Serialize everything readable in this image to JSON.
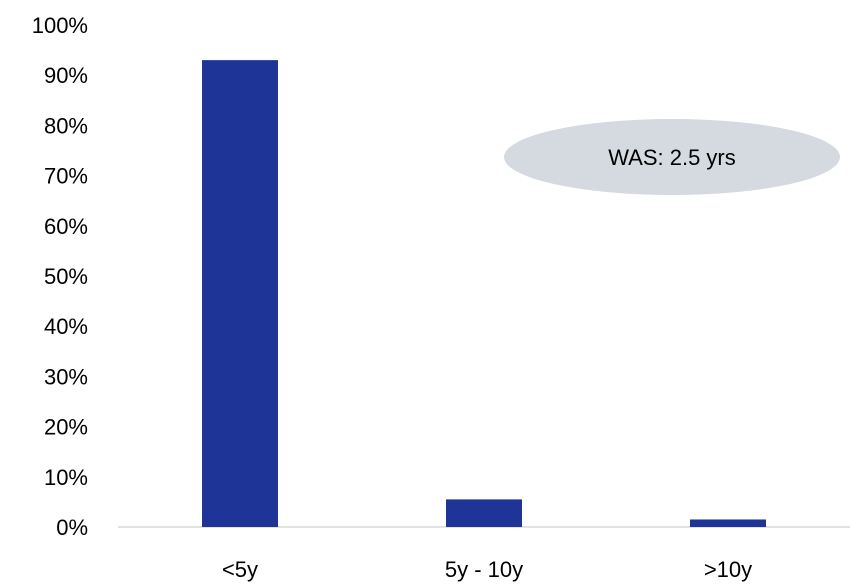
{
  "chart_data": {
    "type": "bar",
    "categories": [
      "<5y",
      "5y - 10y",
      ">10y"
    ],
    "values": [
      93,
      5.5,
      1.5
    ],
    "ylim": [
      0,
      100
    ],
    "yticks": [
      "0%",
      "10%",
      "20%",
      "30%",
      "40%",
      "50%",
      "60%",
      "70%",
      "80%",
      "90%",
      "100%"
    ],
    "grid": false,
    "legend": "none",
    "annotation": "WAS: 2.5 yrs",
    "colors": {
      "bar": "#1f3497",
      "annotation_fill": "#d5dae0",
      "axis": "#d9d9d9"
    }
  }
}
